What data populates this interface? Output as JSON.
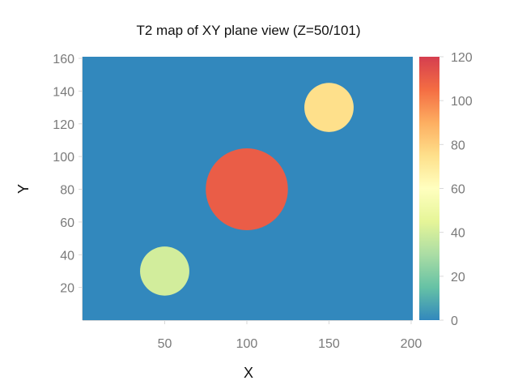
{
  "chart_data": {
    "type": "heatmap",
    "title": "T2 map of XY plane view (Z=50/101)",
    "xlabel": "X",
    "ylabel": "Y",
    "xlim": [
      0,
      201
    ],
    "ylim": [
      0,
      161
    ],
    "x_ticks": [
      50,
      100,
      150,
      200
    ],
    "y_ticks": [
      20,
      40,
      60,
      80,
      100,
      120,
      140,
      160
    ],
    "background_value": 0,
    "circles": [
      {
        "center": [
          50,
          30
        ],
        "radius": 15,
        "value": 40
      },
      {
        "center": [
          100,
          80
        ],
        "radius": 25,
        "value": 110
      },
      {
        "center": [
          150,
          130
        ],
        "radius": 15,
        "value": 75
      }
    ],
    "colorbar": {
      "range": [
        0,
        120
      ],
      "ticks": [
        0,
        20,
        40,
        60,
        80,
        100,
        120
      ],
      "colormap": "Spectral_r"
    },
    "grid": false,
    "legend": "colorbar right"
  },
  "colors": {
    "colormap_stops": [
      "#3288bd",
      "#66c2a5",
      "#abdda4",
      "#e6f598",
      "#ffffbf",
      "#fee08b",
      "#fdae61",
      "#f46d43",
      "#d53e4f"
    ],
    "axis_line": "#d9d9d9",
    "tick_text": "#7a7a7a"
  }
}
